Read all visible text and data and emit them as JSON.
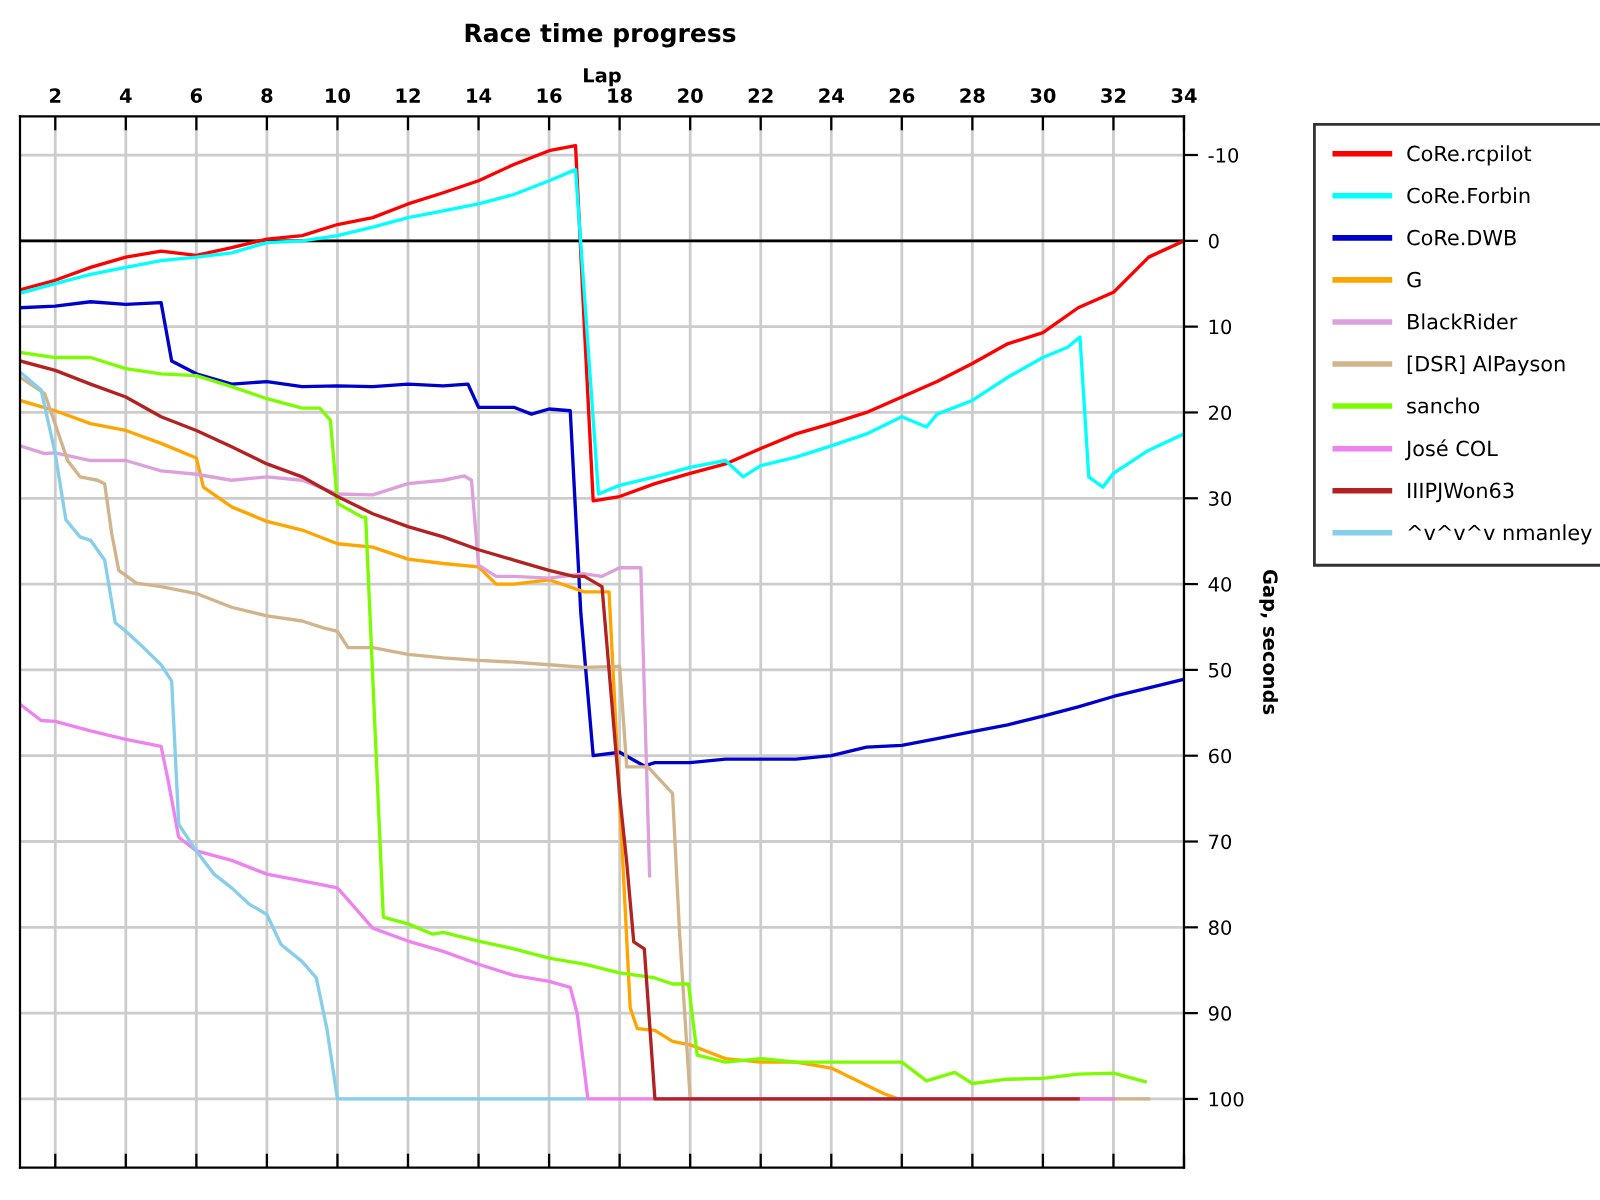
{
  "chart_data": {
    "type": "line",
    "title": "Race time progress",
    "xlabel": "Lap",
    "ylabel": "Gap, seconds",
    "xlim": [
      1,
      34
    ],
    "xticks": [
      2,
      4,
      6,
      8,
      10,
      12,
      14,
      16,
      18,
      20,
      22,
      24,
      26,
      28,
      30,
      32,
      34
    ],
    "ylim": [
      108,
      -14.5
    ],
    "yticks": [
      -10,
      0,
      10,
      20,
      30,
      40,
      50,
      60,
      70,
      80,
      90,
      100
    ],
    "grid": true,
    "legend": "top right",
    "marker": "none",
    "line_style": "solid",
    "ref_lines": [
      {
        "axis": "y",
        "value": 0,
        "color": "#000000"
      }
    ],
    "series": [
      {
        "name": "CoRe.rcpilot",
        "color": "#ff0000",
        "x": [
          1,
          2,
          3,
          4,
          5,
          6,
          7,
          8,
          9,
          10,
          11,
          12,
          13,
          14,
          15,
          16,
          16.75,
          17.0,
          17.25,
          18,
          19,
          20,
          21,
          22,
          23,
          24,
          25,
          26,
          27,
          28,
          29,
          30,
          31,
          32,
          33,
          34
        ],
        "values": [
          5.7,
          4.6,
          3.1,
          1.9,
          1.2,
          1.7,
          0.8,
          -0.2,
          -0.6,
          -1.9,
          -2.7,
          -4.3,
          -5.6,
          -7,
          -8.9,
          -10.5,
          -11.1,
          10,
          30.3,
          29.8,
          28.3,
          27.1,
          26,
          24.2,
          22.5,
          21.3,
          20,
          18.2,
          16.4,
          14.3,
          12,
          10.7,
          7.8,
          6,
          1.9,
          0
        ]
      },
      {
        "name": "CoRe.Forbin",
        "color": "#00ffff",
        "x": [
          1,
          2,
          3,
          4,
          5,
          6,
          7,
          8,
          9,
          10,
          11,
          12,
          13,
          14,
          15,
          16,
          16.75,
          17.4,
          18,
          19,
          20,
          21,
          21.5,
          22,
          23,
          24,
          25,
          26,
          26.7,
          27,
          28,
          29,
          30,
          30.7,
          31.05,
          31.3,
          31.7,
          32,
          33,
          34
        ],
        "values": [
          6.1,
          5,
          3.9,
          3.1,
          2.3,
          1.9,
          1.4,
          0.2,
          0,
          -0.6,
          -1.6,
          -2.7,
          -3.5,
          -4.3,
          -5.4,
          -7,
          -8.3,
          29.5,
          28.5,
          27.5,
          26.4,
          25.6,
          27.5,
          26.2,
          25.2,
          23.9,
          22.5,
          20.5,
          21.7,
          20.2,
          18.6,
          15.9,
          13.6,
          12.4,
          11.2,
          27.5,
          28.7,
          27.1,
          24.4,
          22.5
        ]
      },
      {
        "name": "CoRe.DWB",
        "color": "#0000cd",
        "x": [
          1,
          2,
          3,
          4,
          5,
          5.3,
          6,
          7,
          8,
          9,
          10,
          11,
          12,
          13,
          13.7,
          14,
          15,
          15.5,
          16,
          16.6,
          16.9,
          17.25,
          18,
          18.7,
          19,
          20,
          21,
          22,
          23,
          24,
          25,
          26,
          27,
          28,
          29,
          30,
          31,
          32,
          33,
          34
        ],
        "values": [
          7.8,
          7.6,
          7.1,
          7.4,
          7.2,
          14,
          15.5,
          16.7,
          16.4,
          17,
          16.9,
          17,
          16.7,
          16.9,
          16.7,
          19.4,
          19.4,
          20.2,
          19.6,
          19.8,
          43.4,
          60,
          59.6,
          61.2,
          60.8,
          60.8,
          60.4,
          60.4,
          60.4,
          60,
          59,
          58.8,
          58,
          57.2,
          56.4,
          55.4,
          54.3,
          53.1,
          52.1,
          51.1
        ]
      },
      {
        "name": "G",
        "color": "#ffa500",
        "x": [
          1,
          2,
          3,
          4,
          5,
          6,
          6.2,
          7,
          8,
          9,
          10,
          11,
          12,
          13,
          14,
          14.5,
          15,
          16,
          17,
          17.7,
          18.3,
          18.5,
          19,
          19.5,
          20,
          20.5,
          21,
          22,
          23,
          24,
          25,
          25.5,
          25.9
        ],
        "values": [
          18.6,
          19.8,
          21.3,
          22.1,
          23.6,
          25.3,
          28.7,
          31,
          32.7,
          33.7,
          35.3,
          35.7,
          37.1,
          37.6,
          38,
          40,
          40,
          39.5,
          40.9,
          40.9,
          89.4,
          91.8,
          92,
          93.3,
          93.7,
          94.5,
          95.3,
          95.7,
          95.7,
          96.4,
          98.4,
          99.4,
          100
        ]
      },
      {
        "name": "BlackRider",
        "color": "#dda0dd",
        "x": [
          1,
          1.7,
          2,
          3,
          4,
          5,
          6,
          7,
          8,
          9,
          10,
          11,
          12,
          13,
          13.6,
          13.8,
          14,
          14.5,
          15,
          16,
          17,
          17.5,
          18,
          18.6,
          18.85
        ],
        "values": [
          23.9,
          24.8,
          24.7,
          25.6,
          25.6,
          26.8,
          27.2,
          27.9,
          27.5,
          27.9,
          29.5,
          29.6,
          28.3,
          27.9,
          27.4,
          27.9,
          37.8,
          39.1,
          39.1,
          39.3,
          38.8,
          39.1,
          38.1,
          38.1,
          74
        ]
      },
      {
        "name": "[DSR] AlPayson",
        "color": "#d2b48c",
        "x": [
          1,
          1.7,
          2.35,
          2.7,
          3.2,
          3.4,
          3.6,
          3.8,
          4.3,
          5,
          6,
          7,
          8,
          9,
          9.6,
          10,
          10.3,
          11,
          12,
          13,
          14,
          15,
          16,
          17,
          18,
          18.2,
          18.8,
          19.5,
          19.7,
          20,
          33
        ],
        "values": [
          15.9,
          17.8,
          25.6,
          27.5,
          27.9,
          28.3,
          34.1,
          38.4,
          39.9,
          40.3,
          41.1,
          42.7,
          43.7,
          44.3,
          45.1,
          45.5,
          47.4,
          47.4,
          48.2,
          48.6,
          48.9,
          49.1,
          49.4,
          49.7,
          49.6,
          61.3,
          61.3,
          64.4,
          80.7,
          100,
          100
        ]
      },
      {
        "name": "sancho",
        "color": "#7cfc00",
        "x": [
          1,
          2,
          3,
          4,
          5,
          6,
          7,
          8,
          9,
          9.5,
          9.8,
          10,
          10.7,
          10.8,
          11.3,
          12,
          12.7,
          13,
          14,
          15,
          16,
          17,
          18,
          19,
          19.5,
          19.95,
          20.2,
          21,
          22,
          23,
          24,
          25,
          26,
          26.7,
          27.5,
          28,
          29,
          30,
          31,
          32,
          32.9
        ],
        "values": [
          13,
          13.6,
          13.6,
          14.9,
          15.5,
          15.7,
          17,
          18.4,
          19.5,
          19.5,
          20.9,
          30.6,
          32.2,
          32.2,
          78.8,
          79.6,
          80.8,
          80.6,
          81.6,
          82.5,
          83.6,
          84.3,
          85.3,
          85.9,
          86.6,
          86.6,
          94.9,
          95.7,
          95.3,
          95.7,
          95.7,
          95.7,
          95.7,
          97.9,
          96.9,
          98.2,
          97.7,
          97.6,
          97.1,
          97,
          98
        ]
      },
      {
        "name": "José COL",
        "color": "#ee82ee",
        "x": [
          1,
          1.6,
          2,
          3,
          4,
          5,
          5.2,
          5.5,
          6,
          7,
          8,
          9,
          10,
          11,
          12,
          13,
          14,
          15,
          16,
          16.6,
          16.8,
          17.1,
          32
        ],
        "values": [
          54,
          55.9,
          56,
          57.1,
          58.1,
          58.9,
          62.9,
          69.5,
          71.1,
          72.2,
          73.8,
          74.6,
          75.4,
          80.1,
          81.6,
          82.8,
          84.3,
          85.6,
          86.3,
          87,
          90.1,
          100,
          100
        ]
      },
      {
        "name": "IIIPJWon63",
        "color": "#b22222",
        "x": [
          1,
          2,
          3,
          4,
          5,
          6,
          7,
          8,
          9,
          10,
          11,
          12,
          13,
          14,
          15,
          16,
          16.7,
          17,
          17.5,
          18,
          18.2,
          18.4,
          18.7,
          19,
          31
        ],
        "values": [
          14,
          15.1,
          16.7,
          18.2,
          20.5,
          22.1,
          24,
          26,
          27.5,
          29.8,
          31.8,
          33.3,
          34.5,
          36,
          37.2,
          38.4,
          39.1,
          39.1,
          40.3,
          64.6,
          72.4,
          81.7,
          82.5,
          100,
          100
        ]
      },
      {
        "name": "^v^v^v nmanley",
        "color": "#87ceeb",
        "x": [
          1,
          1.6,
          2,
          2.3,
          2.7,
          3,
          3.4,
          3.7,
          4,
          4.5,
          5,
          5.3,
          5.5,
          6,
          6.5,
          7,
          7.5,
          8,
          8.4,
          9,
          9.4,
          9.7,
          10,
          17
        ],
        "values": [
          15.3,
          17.4,
          24.8,
          32.5,
          34.5,
          34.9,
          37.2,
          44.5,
          45.5,
          47.4,
          49.4,
          51.3,
          68,
          71.1,
          73.8,
          75.4,
          77.3,
          78.5,
          82,
          84,
          85.9,
          91.8,
          100,
          100
        ]
      }
    ]
  }
}
